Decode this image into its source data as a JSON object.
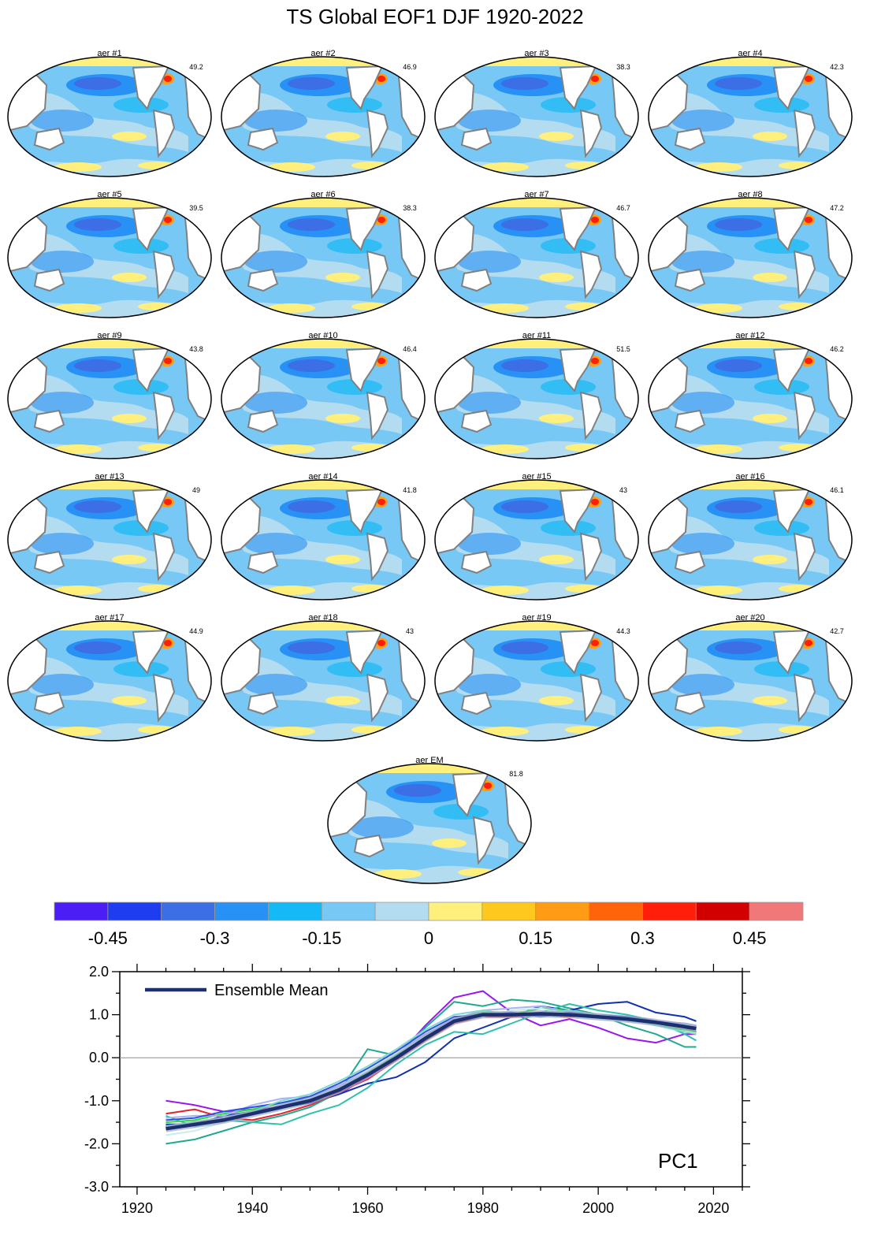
{
  "title": "TS Global EOF1 DJF 1920-2022",
  "panels": [
    {
      "label": "aer #1",
      "pct": "49.2"
    },
    {
      "label": "aer #2",
      "pct": "46.9"
    },
    {
      "label": "aer #3",
      "pct": "38.3"
    },
    {
      "label": "aer #4",
      "pct": "42.3"
    },
    {
      "label": "aer #5",
      "pct": "39.5"
    },
    {
      "label": "aer #6",
      "pct": "38.3"
    },
    {
      "label": "aer #7",
      "pct": "46.7"
    },
    {
      "label": "aer #8",
      "pct": "47.2"
    },
    {
      "label": "aer #9",
      "pct": "43.8"
    },
    {
      "label": "aer #10",
      "pct": "46.4"
    },
    {
      "label": "aer #11",
      "pct": "51.5"
    },
    {
      "label": "aer #12",
      "pct": "46.2"
    },
    {
      "label": "aer #13",
      "pct": "49"
    },
    {
      "label": "aer #14",
      "pct": "41.8"
    },
    {
      "label": "aer #15",
      "pct": "43"
    },
    {
      "label": "aer #16",
      "pct": "46.1"
    },
    {
      "label": "aer #17",
      "pct": "44.9"
    },
    {
      "label": "aer #18",
      "pct": "43"
    },
    {
      "label": "aer #19",
      "pct": "44.3"
    },
    {
      "label": "aer #20",
      "pct": "42.7"
    },
    {
      "label": "aer EM",
      "pct": "81.8"
    }
  ],
  "colorbar": {
    "colors": [
      "#4b1ef5",
      "#1e3cf0",
      "#3c6ee6",
      "#2891f5",
      "#14b9f5",
      "#78c8f5",
      "#b4dcf0",
      "#fff07d",
      "#ffc81e",
      "#ff9b14",
      "#ff640a",
      "#ff1e0a",
      "#d20000",
      "#f07878"
    ],
    "tick_labels": [
      "-0.45",
      "-0.3",
      "-0.15",
      "0",
      "0.15",
      "0.3",
      "0.45"
    ]
  },
  "chart_data": {
    "type": "line",
    "title": "PC1",
    "xlim": [
      1917,
      2025
    ],
    "ylim": [
      -3.0,
      2.0
    ],
    "x_ticks": [
      1920,
      1940,
      1960,
      1980,
      2000,
      2020
    ],
    "y_ticks": [
      -3.0,
      -2.0,
      -1.0,
      0.0,
      1.0,
      2.0
    ],
    "x_tick_labels": [
      "1920",
      "1940",
      "1960",
      "1980",
      "2000",
      "2020"
    ],
    "y_tick_labels": [
      "-3.0",
      "-2.0",
      "-1.0",
      "0.0",
      "1.0",
      "2.0"
    ],
    "legend": "Ensemble Mean",
    "ensemble_mean": {
      "x": [
        1925,
        1930,
        1935,
        1940,
        1945,
        1950,
        1955,
        1960,
        1965,
        1970,
        1975,
        1980,
        1985,
        1990,
        1995,
        2000,
        2005,
        2010,
        2015,
        2017
      ],
      "y": [
        -1.65,
        -1.55,
        -1.45,
        -1.3,
        -1.15,
        -1.0,
        -0.75,
        -0.4,
        0.0,
        0.45,
        0.85,
        1.0,
        1.0,
        1.02,
        1.0,
        0.95,
        0.9,
        0.82,
        0.72,
        0.68
      ]
    },
    "members": [
      {
        "name": "aer #1",
        "color": "#9a16f0",
        "y": [
          -1.0,
          -1.1,
          -1.25,
          -1.2,
          -1.15,
          -1.05,
          -0.85,
          -0.45,
          0.0,
          0.75,
          1.4,
          1.55,
          1.05,
          0.75,
          0.9,
          0.7,
          0.45,
          0.35,
          0.55,
          0.55
        ]
      },
      {
        "name": "aer #2",
        "color": "#20a98f",
        "y": [
          -2.0,
          -1.9,
          -1.7,
          -1.5,
          -1.35,
          -1.15,
          -0.8,
          0.2,
          0.05,
          0.7,
          1.3,
          1.2,
          1.35,
          1.3,
          1.15,
          1.0,
          0.75,
          0.55,
          0.25,
          0.25
        ]
      },
      {
        "name": "aer #3",
        "color": "#1030b0",
        "y": [
          -1.55,
          -1.55,
          -1.35,
          -1.25,
          -1.15,
          -1.05,
          -0.85,
          -0.6,
          -0.45,
          -0.1,
          0.45,
          0.7,
          0.95,
          1.2,
          1.1,
          1.25,
          1.3,
          1.05,
          0.95,
          0.85
        ]
      },
      {
        "name": "aer #4",
        "color": "#30c0b0",
        "y": [
          -1.35,
          -1.6,
          -1.45,
          -1.5,
          -1.55,
          -1.3,
          -1.1,
          -0.7,
          -0.15,
          0.3,
          0.6,
          0.55,
          0.8,
          1.05,
          1.25,
          1.1,
          1.0,
          0.85,
          0.55,
          0.4
        ]
      },
      {
        "name": "aer #5",
        "color": "#e8202a",
        "y": [
          -1.3,
          -1.2,
          -1.4,
          -1.45,
          -1.3,
          -1.1,
          -0.8,
          -0.5,
          -0.05,
          0.4,
          0.8,
          0.95,
          0.95,
          1.0,
          0.95,
          1.0,
          0.85,
          0.8,
          0.7,
          0.6
        ]
      },
      {
        "name": "aer #6",
        "color": "#20e030",
        "y": [
          -1.5,
          -1.45,
          -1.3,
          -1.2,
          -1.05,
          -0.95,
          -0.7,
          -0.35,
          0.05,
          0.5,
          0.9,
          1.05,
          1.0,
          1.15,
          1.1,
          0.95,
          0.9,
          0.75,
          0.65,
          0.6
        ]
      },
      {
        "name": "aer #7",
        "color": "#a8b4f0",
        "y": [
          -1.4,
          -1.35,
          -1.35,
          -1.1,
          -0.95,
          -0.9,
          -0.65,
          -0.3,
          0.1,
          0.55,
          0.9,
          1.1,
          1.15,
          1.2,
          1.05,
          1.0,
          0.95,
          0.85,
          0.8,
          0.75
        ]
      },
      {
        "name": "aer #8",
        "color": "#c8ecf0",
        "y": [
          -1.8,
          -1.7,
          -1.5,
          -1.3,
          -1.1,
          -0.95,
          -0.7,
          -0.3,
          0.1,
          0.5,
          0.85,
          0.95,
          1.1,
          1.15,
          1.0,
          0.9,
          0.85,
          0.8,
          0.7,
          0.65
        ]
      },
      {
        "name": "aer #9",
        "color": "#3050e8",
        "y": [
          -1.45,
          -1.4,
          -1.25,
          -1.15,
          -1.05,
          -0.9,
          -0.6,
          -0.25,
          0.15,
          0.6,
          0.95,
          1.0,
          1.05,
          0.95,
          1.05,
          1.0,
          0.95,
          0.85,
          0.75,
          0.7
        ]
      },
      {
        "name": "aer #10",
        "color": "#80d8d0",
        "y": [
          -1.6,
          -1.5,
          -1.4,
          -1.25,
          -1.0,
          -0.85,
          -0.55,
          -0.2,
          0.2,
          0.65,
          1.0,
          1.1,
          1.0,
          1.05,
          1.1,
          1.0,
          0.9,
          0.75,
          0.6,
          0.55
        ]
      }
    ]
  }
}
